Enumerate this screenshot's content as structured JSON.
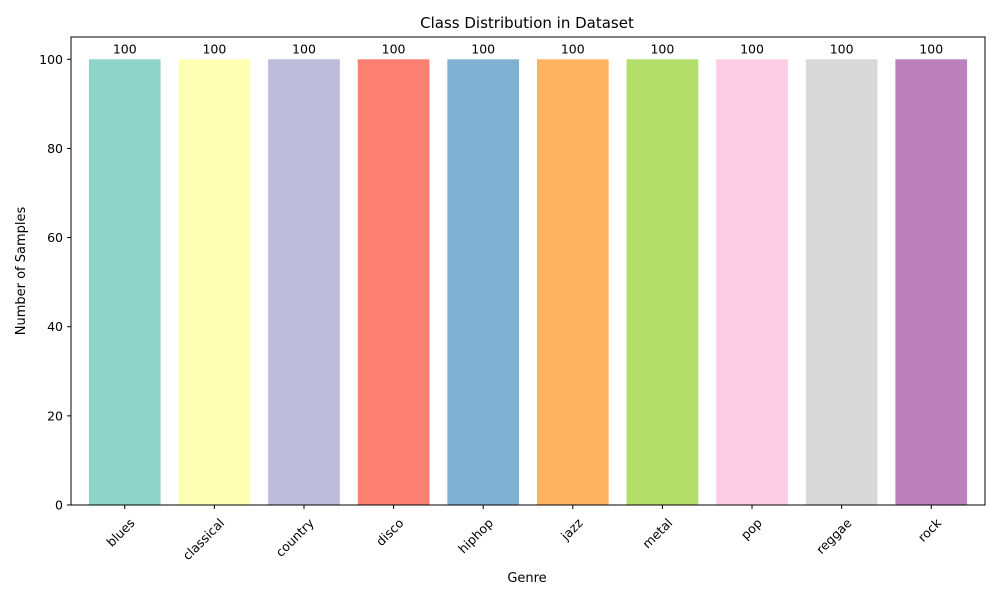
{
  "chart_data": {
    "type": "bar",
    "title": "Class Distribution in Dataset",
    "xlabel": "Genre",
    "ylabel": "Number of Samples",
    "categories": [
      "blues",
      "classical",
      "country",
      "disco",
      "hiphop",
      "jazz",
      "metal",
      "pop",
      "reggae",
      "rock"
    ],
    "values": [
      100,
      100,
      100,
      100,
      100,
      100,
      100,
      100,
      100,
      100
    ],
    "colors": [
      "#8dd3c7",
      "#ffffb3",
      "#bebada",
      "#fb8072",
      "#80b1d3",
      "#fdb462",
      "#b3de69",
      "#fccde5",
      "#d9d9d9",
      "#bc80bd"
    ],
    "ylim": [
      0,
      105
    ],
    "yticks": [
      0,
      20,
      40,
      60,
      80,
      100
    ],
    "grid": false,
    "legend": "none",
    "x_tick_rotation_deg": 45
  }
}
